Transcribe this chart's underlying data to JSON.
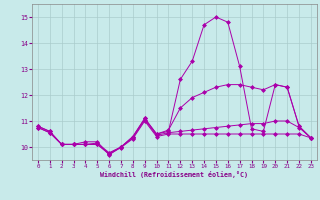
{
  "xlabel": "Windchill (Refroidissement éolien,°C)",
  "xlim": [
    -0.5,
    23.5
  ],
  "ylim": [
    9.5,
    15.5
  ],
  "yticks": [
    10,
    11,
    12,
    13,
    14,
    15
  ],
  "xticks": [
    0,
    1,
    2,
    3,
    4,
    5,
    6,
    7,
    8,
    9,
    10,
    11,
    12,
    13,
    14,
    15,
    16,
    17,
    18,
    19,
    20,
    21,
    22,
    23
  ],
  "background_color": "#c8eaea",
  "grid_color": "#aacccc",
  "line_color": "#aa00aa",
  "series": [
    {
      "x": [
        0,
        1,
        2,
        3,
        4,
        5,
        6,
        7,
        8,
        9,
        10,
        11,
        12,
        13,
        14,
        15,
        16,
        17,
        18,
        19,
        20,
        21,
        22,
        23
      ],
      "y": [
        10.8,
        10.6,
        10.1,
        10.1,
        10.1,
        10.1,
        9.75,
        10.0,
        10.4,
        11.1,
        10.5,
        10.6,
        12.6,
        13.3,
        14.7,
        15.0,
        14.8,
        13.1,
        10.7,
        10.6,
        12.4,
        12.3,
        10.8,
        10.35
      ]
    },
    {
      "x": [
        0,
        1,
        2,
        3,
        4,
        5,
        6,
        7,
        8,
        9,
        10,
        11,
        12,
        13,
        14,
        15,
        16,
        17,
        18,
        19,
        20,
        21,
        22,
        23
      ],
      "y": [
        10.8,
        10.6,
        10.1,
        10.1,
        10.2,
        10.2,
        9.7,
        10.0,
        10.4,
        11.1,
        10.5,
        10.65,
        11.5,
        11.9,
        12.1,
        12.3,
        12.4,
        12.4,
        12.3,
        12.2,
        12.4,
        12.3,
        10.8,
        10.35
      ]
    },
    {
      "x": [
        0,
        1,
        2,
        3,
        4,
        5,
        6,
        7,
        8,
        9,
        10,
        11,
        12,
        13,
        14,
        15,
        16,
        17,
        18,
        19,
        20,
        21,
        22,
        23
      ],
      "y": [
        10.75,
        10.55,
        10.1,
        10.1,
        10.1,
        10.15,
        9.78,
        10.0,
        10.35,
        11.05,
        10.45,
        10.55,
        10.6,
        10.65,
        10.7,
        10.75,
        10.8,
        10.85,
        10.9,
        10.9,
        11.0,
        11.0,
        10.75,
        10.35
      ]
    },
    {
      "x": [
        0,
        1,
        2,
        3,
        4,
        5,
        6,
        7,
        8,
        9,
        10,
        11,
        12,
        13,
        14,
        15,
        16,
        17,
        18,
        19,
        20,
        21,
        22,
        23
      ],
      "y": [
        10.75,
        10.55,
        10.1,
        10.1,
        10.1,
        10.1,
        9.72,
        9.98,
        10.32,
        11.0,
        10.4,
        10.5,
        10.5,
        10.5,
        10.5,
        10.5,
        10.5,
        10.5,
        10.5,
        10.5,
        10.5,
        10.5,
        10.5,
        10.35
      ]
    }
  ]
}
